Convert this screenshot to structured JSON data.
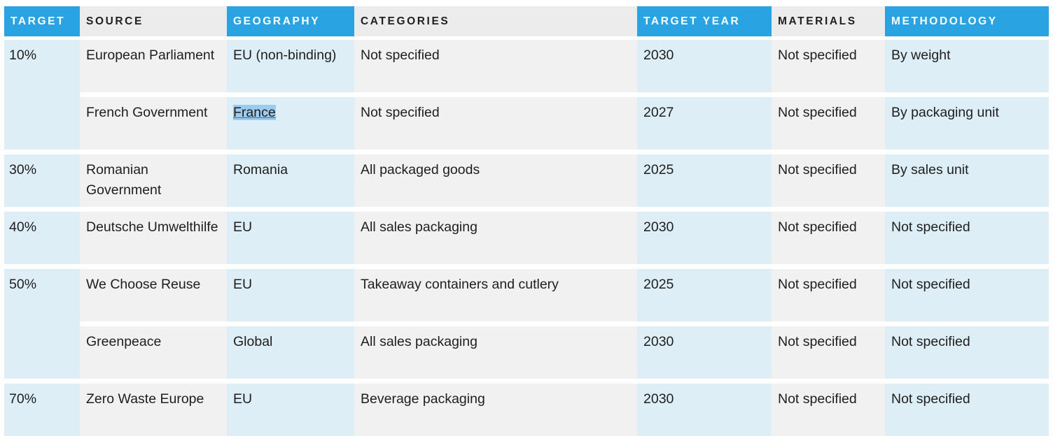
{
  "table": {
    "headers": {
      "target": "TARGET",
      "source": "SOURCE",
      "geography": "GEOGRAPHY",
      "categories": "CATEGORIES",
      "target_year": "TARGET YEAR",
      "materials": "MATERIALS",
      "methodology": "METHODOLOGY"
    },
    "header_highlight_color": "#2aa3e3",
    "groups": [
      {
        "target": "10%",
        "rows": [
          {
            "source": "European Parliament",
            "geography": "EU (non-binding)",
            "categories": "Not specified",
            "target_year": "2030",
            "materials": "Not specified",
            "methodology": "By weight"
          },
          {
            "source": "French Government",
            "geography": "France",
            "categories": "Not specified",
            "target_year": "2027",
            "materials": "Not specified",
            "methodology": "By packaging unit"
          }
        ]
      },
      {
        "target": "30%",
        "rows": [
          {
            "source": "Romanian Government",
            "geography": "Romania",
            "categories": "All packaged goods",
            "target_year": "2025",
            "materials": "Not specified",
            "methodology": "By sales unit"
          }
        ]
      },
      {
        "target": "40%",
        "rows": [
          {
            "source": "Deutsche Umwelthilfe",
            "geography": "EU",
            "categories": "All sales packaging",
            "target_year": "2030",
            "materials": "Not specified",
            "methodology": "Not specified"
          }
        ]
      },
      {
        "target": "50%",
        "rows": [
          {
            "source": "We Choose Reuse",
            "geography": "EU",
            "categories": "Takeaway containers and cutlery",
            "target_year": "2025",
            "materials": "Not specified",
            "methodology": "Not specified"
          },
          {
            "source": "Greenpeace",
            "geography": "Global",
            "categories": "All sales packaging",
            "target_year": "2030",
            "materials": "Not specified",
            "methodology": "Not specified"
          }
        ]
      },
      {
        "target": "70%",
        "rows": [
          {
            "source": "Zero Waste Europe",
            "geography": "EU",
            "categories": "Beverage packaging",
            "target_year": "2030",
            "materials": "Not specified",
            "methodology": "Not specified"
          }
        ]
      }
    ]
  }
}
